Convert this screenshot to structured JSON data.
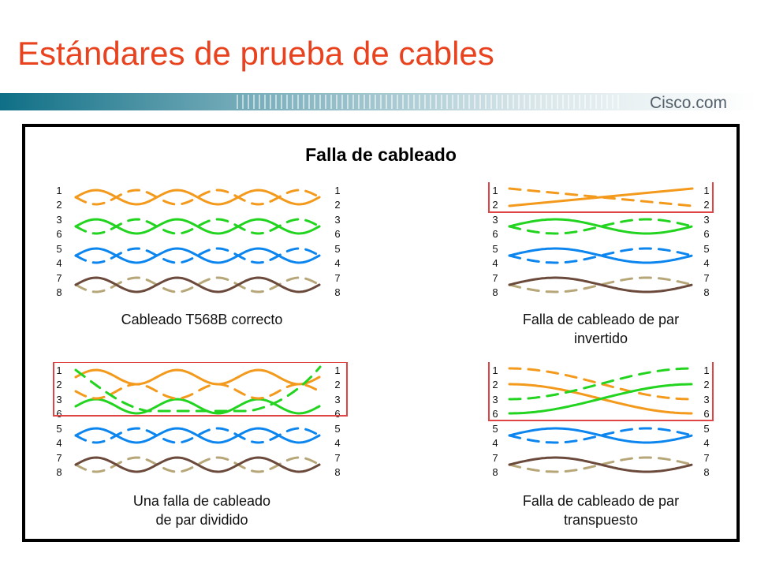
{
  "page": {
    "title": "Estándares de prueba de cables"
  },
  "brand": {
    "logo_text": "Cisco.com"
  },
  "figure": {
    "heading": "Falla de cableado",
    "colors": {
      "orange": "#f39a1c",
      "green": "#22d41f",
      "blue": "#0c86ee",
      "brown": "#6b4a3c",
      "tan": "#b6a678",
      "box": "#e04545"
    },
    "panels": [
      {
        "id": "correct",
        "caption_lines": [
          "Cableado T568B correcto"
        ],
        "pins_left": [
          "1",
          "2",
          "3",
          "6",
          "5",
          "4",
          "7",
          "8"
        ],
        "pins_right": [
          "1",
          "2",
          "3",
          "6",
          "5",
          "4",
          "7",
          "8"
        ]
      },
      {
        "id": "reversed",
        "caption_lines": [
          "Falla de cableado de par",
          "invertido"
        ],
        "pins_left": [
          "1",
          "2",
          "3",
          "6",
          "5",
          "4",
          "7",
          "8"
        ],
        "pins_right": [
          "1",
          "2",
          "3",
          "6",
          "5",
          "4",
          "7",
          "8"
        ]
      },
      {
        "id": "split",
        "caption_lines": [
          "Una falla de cableado",
          "de par dividido"
        ],
        "pins_left": [
          "1",
          "2",
          "3",
          "6",
          "5",
          "4",
          "7",
          "8"
        ],
        "pins_right": [
          "1",
          "2",
          "3",
          "6",
          "5",
          "4",
          "7",
          "8"
        ]
      },
      {
        "id": "transposed",
        "caption_lines": [
          "Falla de cableado de par",
          "transpuesto"
        ],
        "pins_left": [
          "1",
          "2",
          "3",
          "6",
          "5",
          "4",
          "7",
          "8"
        ],
        "pins_right": [
          "1",
          "2",
          "3",
          "6",
          "5",
          "4",
          "7",
          "8"
        ]
      }
    ]
  }
}
